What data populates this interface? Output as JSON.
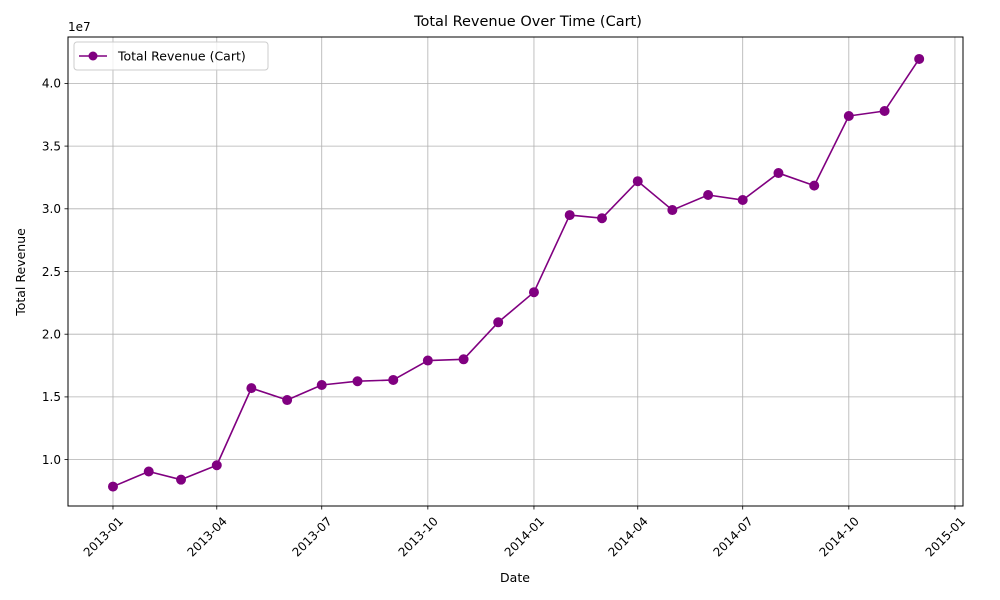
{
  "chart_data": {
    "type": "line",
    "title": "Total Revenue Over Time (Cart)",
    "xlabel": "Date",
    "ylabel": "Total Revenue",
    "y_offset_label": "1e7",
    "y_scale_factor": 10000000,
    "grid": true,
    "legend_position": "upper-left",
    "xlim": [
      "2012-11-23",
      "2015-01-08"
    ],
    "ylim": [
      6300000,
      43700000
    ],
    "x_ticks": [
      "2013-01-01",
      "2013-04-01",
      "2013-07-01",
      "2013-10-01",
      "2014-01-01",
      "2014-04-01",
      "2014-07-01",
      "2014-10-01",
      "2015-01-01"
    ],
    "x_tick_labels": [
      "2013-01",
      "2013-04",
      "2013-07",
      "2013-10",
      "2014-01",
      "2014-04",
      "2014-07",
      "2014-10",
      "2015-01"
    ],
    "y_ticks": [
      10000000,
      15000000,
      20000000,
      25000000,
      30000000,
      35000000,
      40000000
    ],
    "y_tick_labels": [
      "1.0",
      "1.5",
      "2.0",
      "2.5",
      "3.0",
      "3.5",
      "4.0"
    ],
    "x": [
      "2013-01-01",
      "2013-02-01",
      "2013-03-01",
      "2013-04-01",
      "2013-05-01",
      "2013-06-01",
      "2013-07-01",
      "2013-08-01",
      "2013-09-01",
      "2013-10-01",
      "2013-11-01",
      "2013-12-01",
      "2014-01-01",
      "2014-02-01",
      "2014-03-01",
      "2014-04-01",
      "2014-05-01",
      "2014-06-01",
      "2014-07-01",
      "2014-08-01",
      "2014-09-01",
      "2014-10-01",
      "2014-11-01",
      "2014-12-01"
    ],
    "series": [
      {
        "name": "Total Revenue (Cart)",
        "color": "#800080",
        "marker": "circle",
        "values": [
          7850000,
          9050000,
          8400000,
          9550000,
          15700000,
          14750000,
          15950000,
          16250000,
          16350000,
          17900000,
          18000000,
          20950000,
          23350000,
          29500000,
          29250000,
          32200000,
          29900000,
          31100000,
          30700000,
          32850000,
          31850000,
          37400000,
          37800000,
          41950000
        ]
      }
    ]
  }
}
